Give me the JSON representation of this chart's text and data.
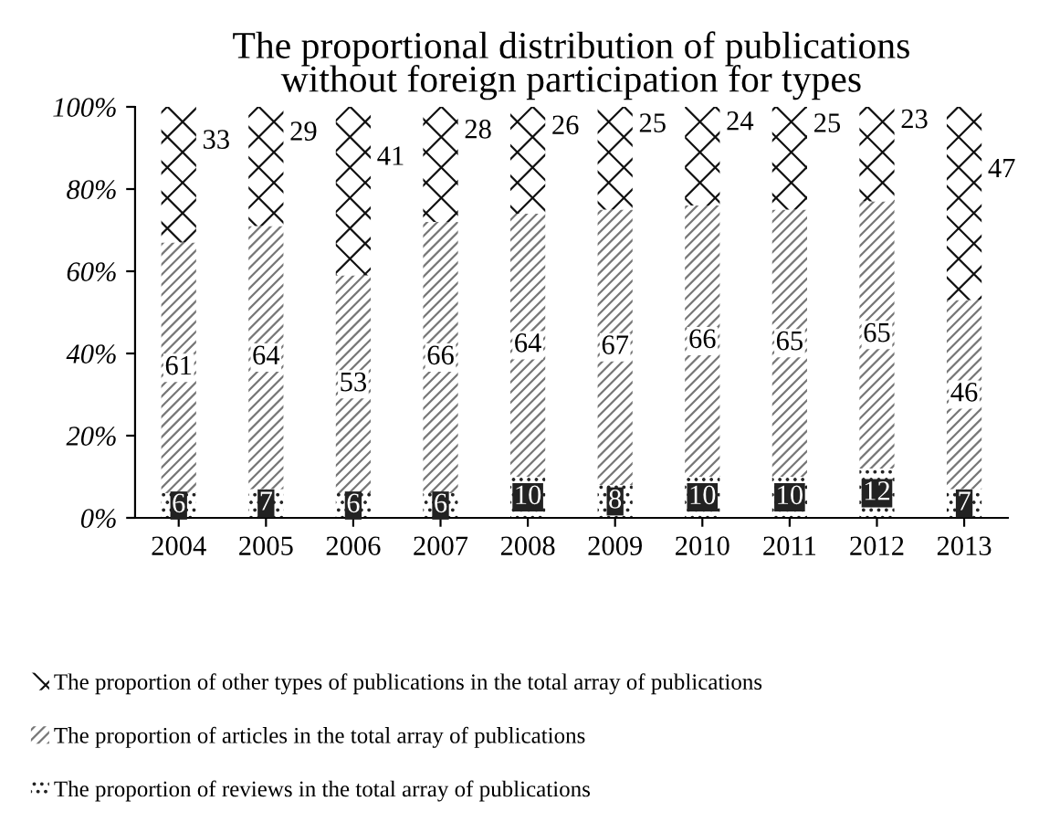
{
  "chart_data": {
    "type": "bar",
    "stacked": true,
    "title": "The proportional distribution of publications\nwithout foreign participation for types",
    "categories": [
      "2004",
      "2005",
      "2006",
      "2007",
      "2008",
      "2009",
      "2010",
      "2011",
      "2012",
      "2013"
    ],
    "series": [
      {
        "name": "The proportion of reviews in the total array of publications",
        "color": "#222222",
        "values": [
          6,
          7,
          6,
          6,
          10,
          8,
          10,
          10,
          12,
          7
        ]
      },
      {
        "name": "The proportion of articles in the total array of publications",
        "color": "#777777",
        "values": [
          61,
          64,
          53,
          66,
          64,
          67,
          66,
          65,
          65,
          46
        ]
      },
      {
        "name": "The proportion of other types of publications in the total array of publications",
        "color": "#111111",
        "values": [
          33,
          29,
          41,
          28,
          26,
          25,
          24,
          25,
          23,
          47
        ]
      }
    ],
    "ylim": [
      0,
      100
    ],
    "yticks": [
      {
        "value": 0,
        "label": "0%"
      },
      {
        "value": 20,
        "label": "20%"
      },
      {
        "value": 40,
        "label": "40%"
      },
      {
        "value": 60,
        "label": "60%"
      },
      {
        "value": 80,
        "label": "80%"
      },
      {
        "value": 100,
        "label": "100%"
      }
    ],
    "data_labels": true,
    "legend": "bottom",
    "grid": false
  }
}
